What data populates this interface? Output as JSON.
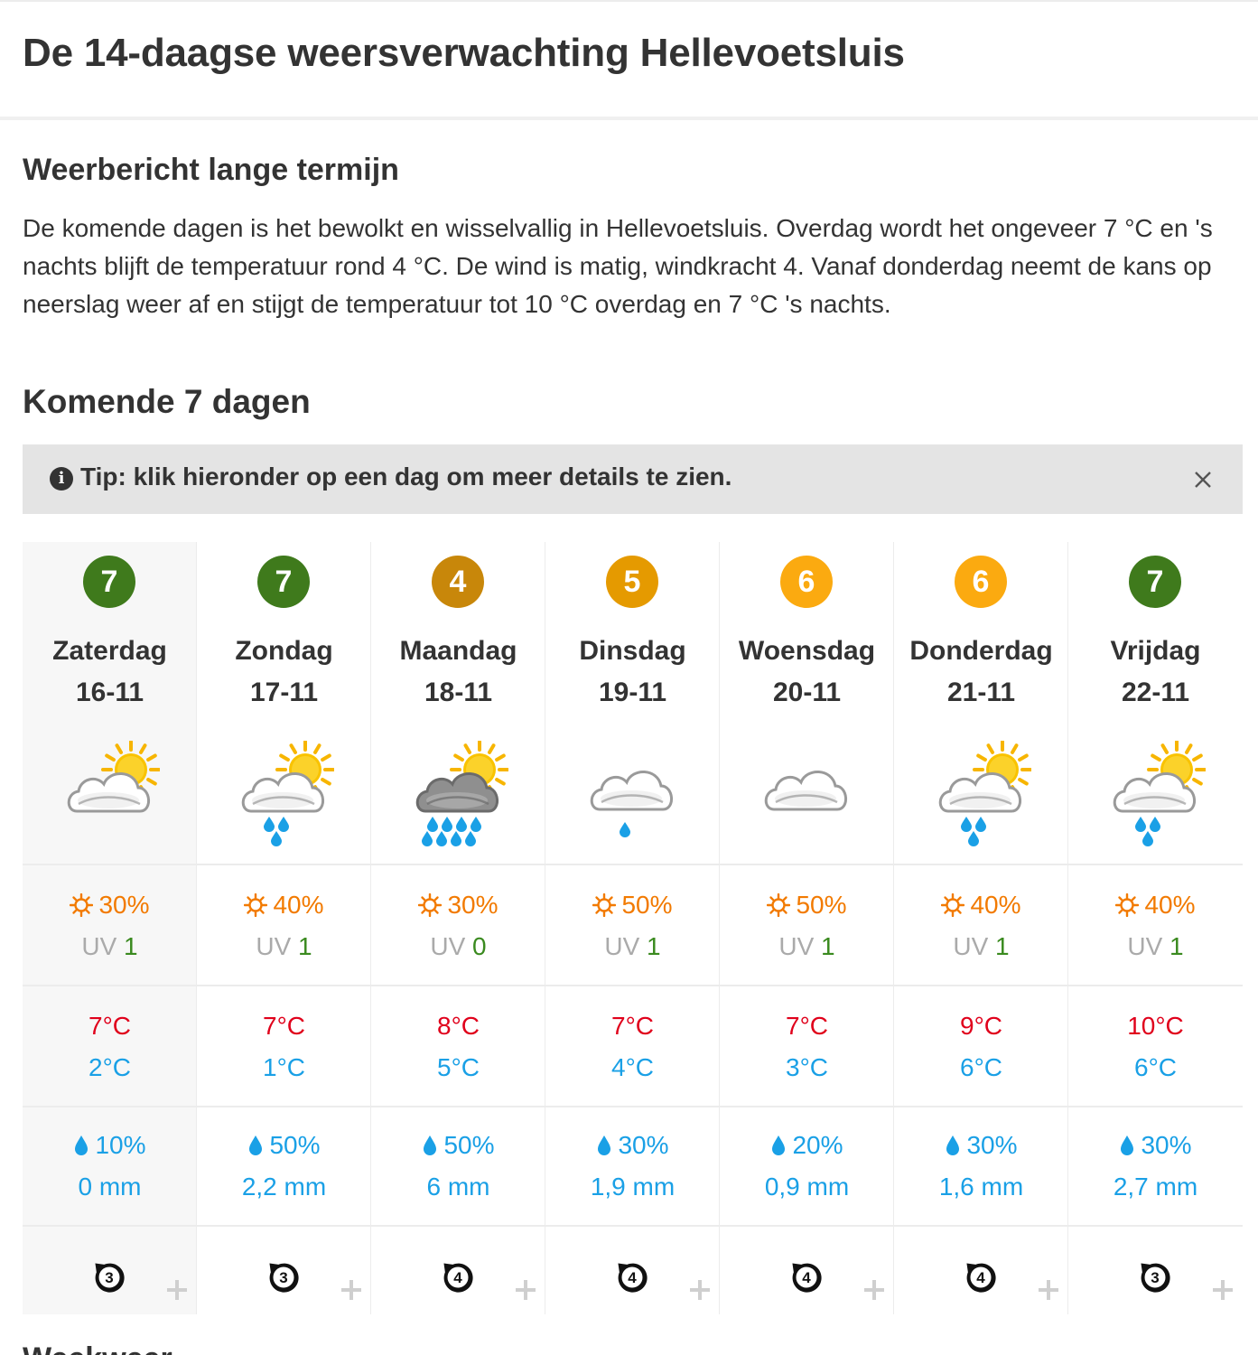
{
  "page": {
    "title": "De 14-daagse weersverwachting Hellevoetsluis",
    "section_title": "Weerbericht lange termijn",
    "forecast_text": "De komende dagen is het bewolkt en wisselvallig in Hellevoetsluis. Overdag wordt het ongeveer 7 °C en 's nachts blijft de temperatuur rond 4 °C. De wind is matig, windkracht 4. Vanaf donderdag neemt de kans op neerslag weer af en stijgt de temperatuur tot 10 °C overdag en 7 °C 's nachts.",
    "days_title": "Komende 7 dagen",
    "next_section_partial": "Weekweer"
  },
  "tip": {
    "icon": "info-icon",
    "text": "Tip: klik hieronder op een dag om meer details te zien.",
    "close_icon": "close-icon"
  },
  "colors": {
    "score_green": "#3f7a1c",
    "score_brown": "#c8870a",
    "score_orange_dark": "#e59a00",
    "score_orange": "#fbaa10",
    "sun_orange": "#f27a00",
    "temp_max_red": "#e0001b",
    "temp_min_blue": "#1aa0e6",
    "uv_green": "#3a8a1f"
  },
  "days": [
    {
      "score": "7",
      "score_color": "#3f7a1c",
      "name": "Zaterdag",
      "date": "16-11",
      "icon": "partly-cloudy-icon",
      "sun": "30%",
      "uv_label": "UV",
      "uv": "1",
      "tmax": "7°C",
      "tmin": "2°C",
      "rain_pct": "10%",
      "rain_mm": "0 mm",
      "wind_force": "3",
      "wind_icon": "wind-direction-icon"
    },
    {
      "score": "7",
      "score_color": "#3f7a1c",
      "name": "Zondag",
      "date": "17-11",
      "icon": "partly-cloudy-light-rain-icon",
      "sun": "40%",
      "uv_label": "UV",
      "uv": "1",
      "tmax": "7°C",
      "tmin": "1°C",
      "rain_pct": "50%",
      "rain_mm": "2,2 mm",
      "wind_force": "3",
      "wind_icon": "wind-direction-icon"
    },
    {
      "score": "4",
      "score_color": "#c8870a",
      "name": "Maandag",
      "date": "18-11",
      "icon": "dark-cloud-rain-icon",
      "sun": "30%",
      "uv_label": "UV",
      "uv": "0",
      "tmax": "8°C",
      "tmin": "5°C",
      "rain_pct": "50%",
      "rain_mm": "6 mm",
      "wind_force": "4",
      "wind_icon": "wind-direction-icon"
    },
    {
      "score": "5",
      "score_color": "#e59a00",
      "name": "Dinsdag",
      "date": "19-11",
      "icon": "cloud-drizzle-icon",
      "sun": "50%",
      "uv_label": "UV",
      "uv": "1",
      "tmax": "7°C",
      "tmin": "4°C",
      "rain_pct": "30%",
      "rain_mm": "1,9 mm",
      "wind_force": "4",
      "wind_icon": "wind-direction-icon"
    },
    {
      "score": "6",
      "score_color": "#fbaa10",
      "name": "Woensdag",
      "date": "20-11",
      "icon": "cloud-icon",
      "sun": "50%",
      "uv_label": "UV",
      "uv": "1",
      "tmax": "7°C",
      "tmin": "3°C",
      "rain_pct": "20%",
      "rain_mm": "0,9 mm",
      "wind_force": "4",
      "wind_icon": "wind-direction-icon"
    },
    {
      "score": "6",
      "score_color": "#fbaa10",
      "name": "Donderdag",
      "date": "21-11",
      "icon": "partly-cloudy-light-rain-icon",
      "sun": "40%",
      "uv_label": "UV",
      "uv": "1",
      "tmax": "9°C",
      "tmin": "6°C",
      "rain_pct": "30%",
      "rain_mm": "1,6 mm",
      "wind_force": "4",
      "wind_icon": "wind-direction-icon"
    },
    {
      "score": "7",
      "score_color": "#3f7a1c",
      "name": "Vrijdag",
      "date": "22-11",
      "icon": "partly-cloudy-light-rain-icon",
      "sun": "40%",
      "uv_label": "UV",
      "uv": "1",
      "tmax": "10°C",
      "tmin": "6°C",
      "rain_pct": "30%",
      "rain_mm": "2,7 mm",
      "wind_force": "3",
      "wind_icon": "wind-direction-icon"
    }
  ]
}
